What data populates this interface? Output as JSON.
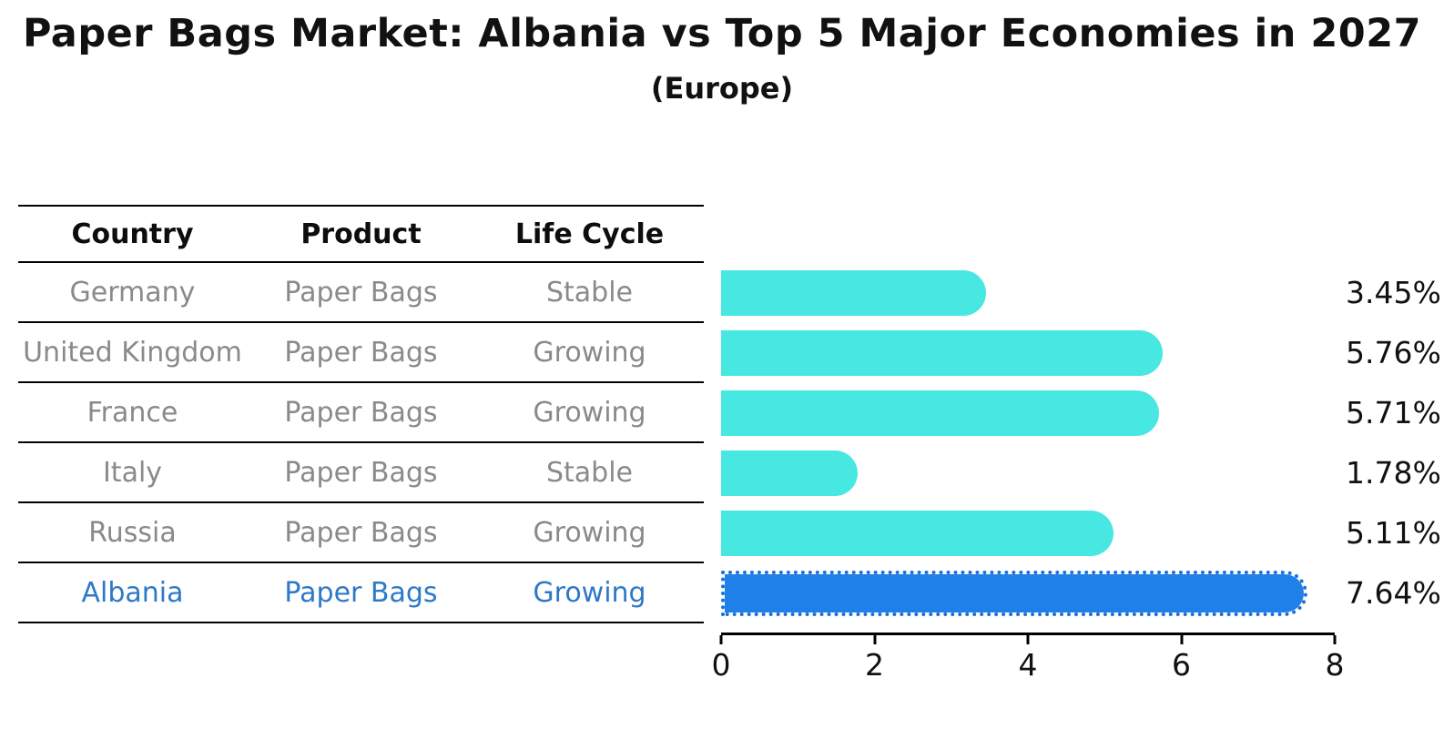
{
  "title": "Paper Bags Market: Albania vs Top 5 Major Economies in 2027",
  "subtitle": "(Europe)",
  "table": {
    "headers": [
      "Country",
      "Product",
      "Life Cycle"
    ],
    "rows": [
      {
        "country": "Germany",
        "product": "Paper Bags",
        "life_cycle": "Stable",
        "highlight": false
      },
      {
        "country": "United Kingdom",
        "product": "Paper Bags",
        "life_cycle": "Growing",
        "highlight": false
      },
      {
        "country": "France",
        "product": "Paper Bags",
        "life_cycle": "Growing",
        "highlight": false
      },
      {
        "country": "Italy",
        "product": "Paper Bags",
        "life_cycle": "Stable",
        "highlight": false
      },
      {
        "country": "Russia",
        "product": "Paper Bags",
        "life_cycle": "Growing",
        "highlight": true
      }
    ],
    "highlight_row": {
      "country": "Albania",
      "product": "Paper Bags",
      "life_cycle": "Growing"
    }
  },
  "chart_data": {
    "type": "bar",
    "orientation": "horizontal",
    "title": "Paper Bags Market: Albania vs Top 5 Major Economies in 2027",
    "subtitle": "(Europe)",
    "categories": [
      "Germany",
      "United Kingdom",
      "France",
      "Italy",
      "Russia",
      "Albania"
    ],
    "values": [
      3.45,
      5.76,
      5.71,
      1.78,
      5.11,
      7.64
    ],
    "labels": [
      "3.45%",
      "5.76%",
      "5.71%",
      "1.78%",
      "5.11%",
      "7.64%"
    ],
    "xlim": [
      0,
      8
    ],
    "x_ticks": [
      "0",
      "2",
      "4",
      "6",
      "8"
    ],
    "grid": false,
    "legend": "none",
    "bar_color": "#48e8e2",
    "highlight_color": "#1e80e8",
    "highlight_index": 5,
    "highlight_category": "Albania"
  },
  "colors": {
    "bar_cyan": "#48e8e2",
    "bar_blue": "#1e80e8",
    "highlight_text": "#2e79c7",
    "row_text": "#8a8a8a",
    "heading_text": "#0d0d0d"
  }
}
